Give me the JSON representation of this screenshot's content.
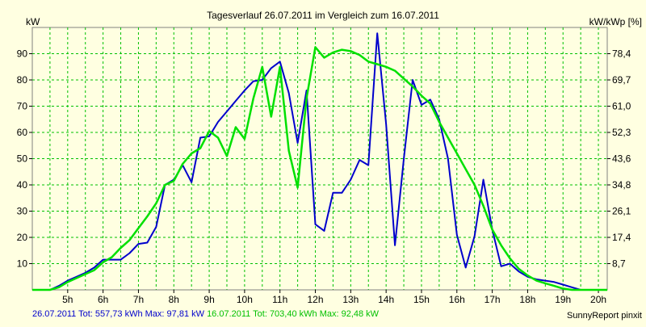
{
  "chart_data": {
    "type": "line",
    "title": "Tagesverlauf 26.07.2011 im Vergleich zum 16.07.2011",
    "ylabel_left": "kW",
    "ylabel_right": "kW/kWp [%]",
    "ylim": [
      0,
      100
    ],
    "xlim": [
      4.0,
      20.25
    ],
    "yticks_left": [
      10,
      20,
      30,
      40,
      50,
      60,
      70,
      80,
      90
    ],
    "yticks_right": [
      "8,7",
      "17,4",
      "26,1",
      "34,8",
      "43,6",
      "52,3",
      "61,0",
      "69,7",
      "78,4"
    ],
    "xtick_values": [
      5,
      6,
      7,
      8,
      9,
      10,
      11,
      12,
      13,
      14,
      15,
      16,
      17,
      18,
      19,
      20
    ],
    "xtick_labels": [
      "5h",
      "6h",
      "7h",
      "8h",
      "9h",
      "10h",
      "11h",
      "12h",
      "13h",
      "14h",
      "15h",
      "16h",
      "17h",
      "18h",
      "19h",
      "20h"
    ],
    "grid": true,
    "series": [
      {
        "name": "26.07.2011",
        "color": "#0000cc",
        "x": [
          4.0,
          4.5,
          4.75,
          5.0,
          5.25,
          5.5,
          5.75,
          6.0,
          6.25,
          6.5,
          6.75,
          7.0,
          7.25,
          7.5,
          7.75,
          8.0,
          8.25,
          8.5,
          8.75,
          9.0,
          9.25,
          9.5,
          9.75,
          10.0,
          10.25,
          10.5,
          10.75,
          11.0,
          11.25,
          11.5,
          11.75,
          12.0,
          12.25,
          12.5,
          12.75,
          13.0,
          13.25,
          13.5,
          13.75,
          14.0,
          14.25,
          14.5,
          14.75,
          15.0,
          15.25,
          15.5,
          15.75,
          16.0,
          16.25,
          16.5,
          16.75,
          17.0,
          17.25,
          17.5,
          17.75,
          18.0,
          18.25,
          18.5,
          18.75,
          19.0,
          19.25,
          19.5,
          19.75,
          20.0,
          20.25
        ],
        "y": [
          0,
          0,
          1.5,
          3.5,
          5,
          6.5,
          8.5,
          11.5,
          11.5,
          11.5,
          14,
          17.5,
          18,
          24,
          40,
          42,
          47.5,
          41,
          58,
          58.5,
          64,
          68,
          72,
          76,
          79.5,
          80,
          84.5,
          87,
          75,
          56,
          76,
          25,
          22.5,
          37,
          37,
          42,
          49.5,
          47.5,
          97.8,
          63,
          17,
          50,
          80,
          70.5,
          72.5,
          65,
          50,
          21,
          8.5,
          20.5,
          42,
          23,
          9,
          10,
          7,
          5,
          4,
          3.5,
          3,
          2,
          1,
          0,
          0,
          0,
          0
        ]
      },
      {
        "name": "16.07.2011",
        "color": "#00e000",
        "x": [
          4.0,
          4.5,
          4.75,
          5.0,
          5.25,
          5.5,
          5.75,
          6.0,
          6.25,
          6.5,
          6.75,
          7.0,
          7.25,
          7.5,
          7.75,
          8.0,
          8.25,
          8.5,
          8.75,
          9.0,
          9.25,
          9.5,
          9.75,
          10.0,
          10.25,
          10.5,
          10.75,
          11.0,
          11.25,
          11.5,
          11.75,
          12.0,
          12.25,
          12.5,
          12.75,
          13.0,
          13.25,
          13.5,
          13.75,
          14.0,
          14.25,
          14.5,
          14.75,
          15.0,
          15.25,
          15.5,
          15.75,
          16.0,
          16.25,
          16.5,
          16.75,
          17.0,
          17.25,
          17.5,
          17.75,
          18.0,
          18.25,
          18.5,
          18.75,
          19.0,
          19.25,
          19.5,
          19.75,
          20.0,
          20.25
        ],
        "y": [
          0,
          0,
          1,
          3,
          4.5,
          6,
          7.5,
          10.5,
          12.5,
          16,
          19,
          23.5,
          28,
          33,
          40,
          41.5,
          48,
          52,
          54,
          60.5,
          58,
          51,
          62,
          57.5,
          73,
          85,
          66,
          85,
          53,
          39,
          73,
          92.5,
          88.5,
          90.5,
          91.5,
          91,
          89.5,
          87,
          86,
          85,
          83.5,
          80.5,
          77.5,
          74,
          71,
          64,
          58,
          52,
          46,
          40,
          32,
          23,
          17,
          12,
          8,
          5.5,
          3.5,
          2.5,
          1.5,
          0.5,
          0,
          0,
          0,
          0,
          0
        ]
      }
    ],
    "footer": {
      "series1": "26.07.2011 Tot: 557,73 kWh Max: 97,81 kW",
      "series2": "16.07.2011 Tot: 703,40 kWh Max: 92,48 kW",
      "brand": "SunnyReport pinxit"
    }
  }
}
